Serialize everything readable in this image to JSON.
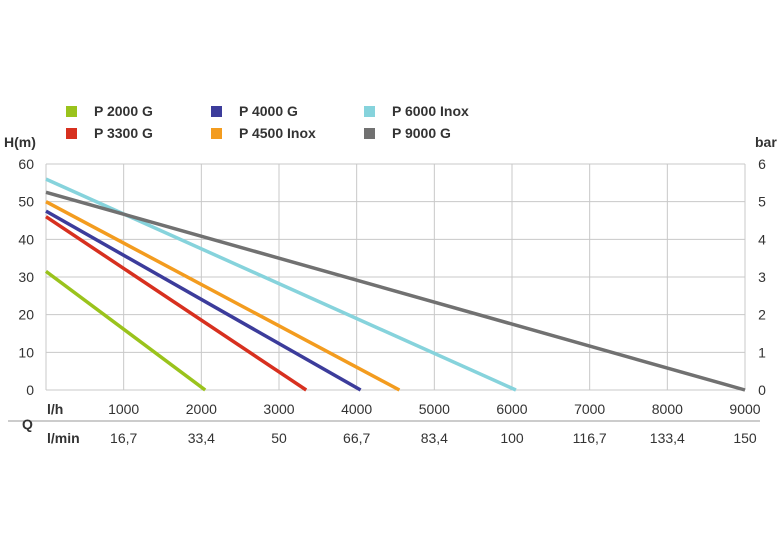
{
  "chart_data": {
    "type": "line",
    "left_axis_label": "H(m)",
    "right_axis_label": "bar",
    "q_label": "Q",
    "x_row1_label": "l/h",
    "x_row2_label": "l/min",
    "xlim": [
      0,
      9000
    ],
    "ylim": [
      0,
      60
    ],
    "y_ticks": [
      0,
      10,
      20,
      30,
      40,
      50,
      60
    ],
    "y_tick_labels": [
      "0",
      "10",
      "20",
      "30",
      "40",
      "50",
      "60"
    ],
    "bar_ticks": [
      0,
      10,
      20,
      30,
      40,
      50,
      60
    ],
    "bar_tick_labels": [
      "0",
      "1",
      "2",
      "3",
      "4",
      "5",
      "6"
    ],
    "x_ticks": [
      1000,
      2000,
      3000,
      4000,
      5000,
      6000,
      7000,
      8000,
      9000
    ],
    "x_tick_labels": [
      "1000",
      "2000",
      "3000",
      "4000",
      "5000",
      "6000",
      "7000",
      "8000",
      "9000"
    ],
    "xmin_ticks": [
      1000,
      2000,
      3000,
      4000,
      5000,
      6000,
      7000,
      8000,
      9000
    ],
    "xmin_tick_labels": [
      "16,7",
      "33,4",
      "50",
      "66,7",
      "83,4",
      "100",
      "116,7",
      "133,4",
      "150"
    ],
    "grid": true,
    "legend_position": "top",
    "series": [
      {
        "name": "P 2000 G",
        "color": "#9ac31c",
        "x": [
          0,
          2050
        ],
        "y": [
          31.5,
          0
        ]
      },
      {
        "name": "P 3300 G",
        "color": "#d7301f",
        "x": [
          0,
          3350
        ],
        "y": [
          46,
          0
        ]
      },
      {
        "name": "P 4000 G",
        "color": "#3c3c9b",
        "x": [
          0,
          4050
        ],
        "y": [
          47.5,
          0
        ]
      },
      {
        "name": "P 4500 Inox",
        "color": "#f39c1f",
        "x": [
          0,
          4550
        ],
        "y": [
          50,
          0
        ]
      },
      {
        "name": "P 6000 Inox",
        "color": "#86d3dc",
        "x": [
          0,
          6050
        ],
        "y": [
          56,
          0
        ]
      },
      {
        "name": "P 9000 G",
        "color": "#717171",
        "x": [
          0,
          9000
        ],
        "y": [
          52.5,
          0
        ]
      }
    ]
  }
}
